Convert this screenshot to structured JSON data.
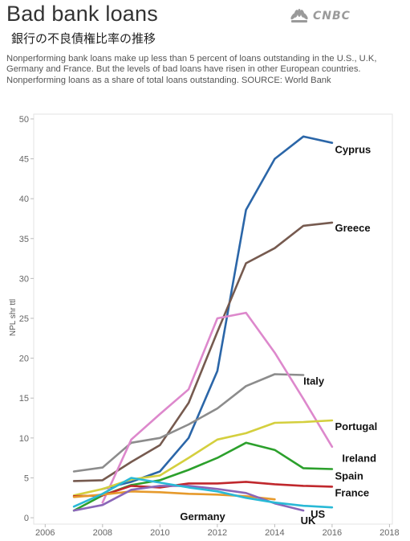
{
  "header": {
    "title": "Bad bank loans",
    "subtitle_jp": "銀行の不良債権比率の推移",
    "logo_text": "CNBC",
    "logo_icon": "nbc-peacock-icon",
    "description": "Nonperforming bank loans make up less than 5 percent of loans outstanding in the U.S., U.K, Germany and France. But the levels of bad loans have risen in other European countries. Nonperforming loans as a share of total loans outstanding. SOURCE: World Bank"
  },
  "chart_data": {
    "type": "line",
    "ylabel": "NPL shr ttl",
    "xlabel": "",
    "xlim": [
      2005.6,
      2018.1
    ],
    "ylim": [
      -0.8,
      50.6
    ],
    "xticks": [
      2006,
      2008,
      2010,
      2012,
      2014,
      2016,
      2018
    ],
    "yticks": [
      0,
      5,
      10,
      15,
      20,
      25,
      30,
      35,
      40,
      45,
      50
    ],
    "grid": false,
    "series": [
      {
        "name": "Cyprus",
        "color": "#2b66a8",
        "label_pos": [
          2016.1,
          46.2
        ],
        "x": [
          2008,
          2009,
          2010,
          2011,
          2012,
          2013,
          2014,
          2015,
          2016
        ],
        "y": [
          3.6,
          4.5,
          5.8,
          10.0,
          18.4,
          38.6,
          45.0,
          47.8,
          47.0
        ]
      },
      {
        "name": "Greece",
        "color": "#765a4f",
        "label_pos": [
          2016.1,
          36.4
        ],
        "x": [
          2007,
          2008,
          2009,
          2010,
          2011,
          2012,
          2013,
          2014,
          2015,
          2016
        ],
        "y": [
          4.6,
          4.7,
          7.0,
          9.1,
          14.4,
          23.3,
          31.9,
          33.8,
          36.6,
          37.0
        ]
      },
      {
        "name": "Italy",
        "color": "#8c8c8c",
        "label_pos": [
          2015.0,
          17.2
        ],
        "x": [
          2007,
          2008,
          2009,
          2010,
          2011,
          2012,
          2013,
          2014,
          2015
        ],
        "y": [
          5.8,
          6.3,
          9.4,
          10.0,
          11.7,
          13.7,
          16.5,
          18.0,
          17.9
        ]
      },
      {
        "name": "Ireland",
        "color": "#dd88cc",
        "label_pos": [
          2016.35,
          7.5
        ],
        "x": [
          2008,
          2009,
          2010,
          2011,
          2012,
          2013,
          2014,
          2015,
          2016
        ],
        "y": [
          1.9,
          9.8,
          13.0,
          16.1,
          25.0,
          25.7,
          20.7,
          14.9,
          8.9
        ]
      },
      {
        "name": "Portugal",
        "color": "#d4cf3e",
        "label_pos": [
          2016.1,
          11.5
        ],
        "x": [
          2007,
          2008,
          2009,
          2010,
          2011,
          2012,
          2013,
          2014,
          2015,
          2016
        ],
        "y": [
          2.8,
          3.6,
          4.8,
          5.3,
          7.5,
          9.8,
          10.6,
          11.9,
          12.0,
          12.2
        ]
      },
      {
        "name": "Spain",
        "color": "#2ca02c",
        "label_pos": [
          2016.1,
          5.3
        ],
        "x": [
          2007,
          2008,
          2009,
          2010,
          2011,
          2012,
          2013,
          2014,
          2015,
          2016
        ],
        "y": [
          0.9,
          2.8,
          4.1,
          4.7,
          6.0,
          7.5,
          9.4,
          8.5,
          6.2,
          6.1
        ]
      },
      {
        "name": "France",
        "color": "#c0282d",
        "label_pos": [
          2016.1,
          3.2
        ],
        "x": [
          2007,
          2008,
          2009,
          2010,
          2011,
          2012,
          2013,
          2014,
          2015,
          2016
        ],
        "y": [
          2.7,
          2.8,
          4.0,
          3.8,
          4.3,
          4.3,
          4.5,
          4.2,
          4.0,
          3.9
        ]
      },
      {
        "name": "Germany",
        "color": "#e69a2c",
        "label_pos": [
          2010.7,
          0.2
        ],
        "x": [
          2007,
          2008,
          2009,
          2010,
          2011,
          2012,
          2013,
          2014
        ],
        "y": [
          2.6,
          2.9,
          3.3,
          3.2,
          3.0,
          2.9,
          2.7,
          2.3
        ]
      },
      {
        "name": "UK",
        "color": "#8a66b8",
        "label_pos": [
          2014.9,
          -0.3
        ],
        "x": [
          2007,
          2008,
          2009,
          2010,
          2011,
          2012,
          2013,
          2014,
          2015
        ],
        "y": [
          0.9,
          1.6,
          3.5,
          4.0,
          4.0,
          3.6,
          3.1,
          1.8,
          0.9
        ]
      },
      {
        "name": "US",
        "color": "#29b9d6",
        "label_pos": [
          2015.25,
          0.5
        ],
        "x": [
          2007,
          2008,
          2009,
          2010,
          2011,
          2012,
          2013,
          2014,
          2015,
          2016
        ],
        "y": [
          1.4,
          3.0,
          5.0,
          4.4,
          3.8,
          3.3,
          2.5,
          1.9,
          1.5,
          1.3
        ]
      }
    ]
  }
}
